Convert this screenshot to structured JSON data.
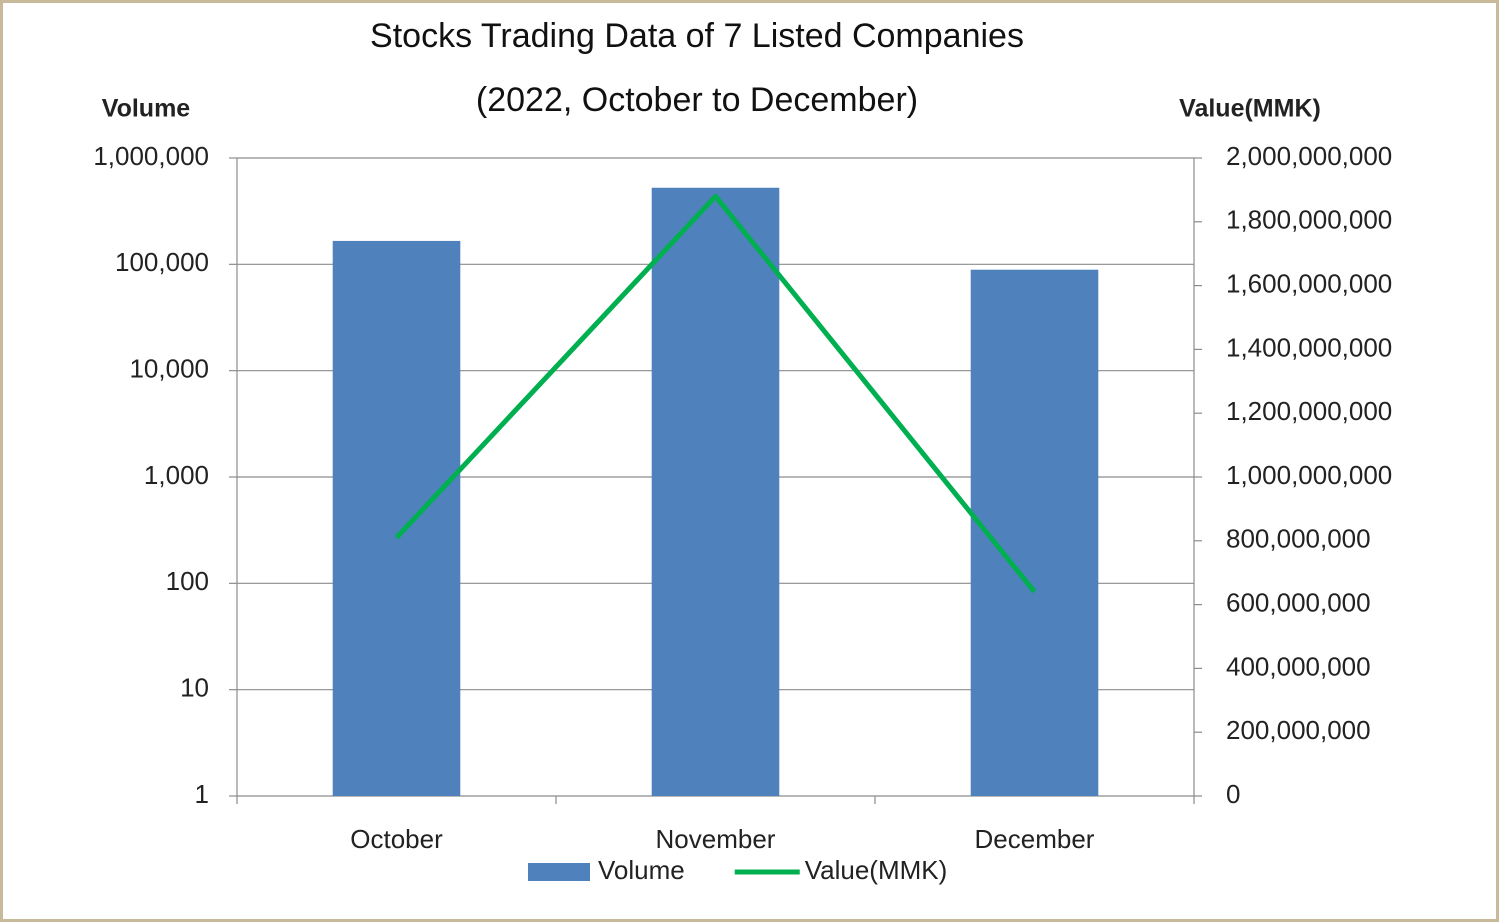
{
  "chart_data": {
    "type": "bar_line",
    "title": "Stocks Trading Data of 7 Listed Companies",
    "subtitle": "(2022, October to December)",
    "ylabel": "Volume",
    "y2label": "Value(MMK)",
    "categories": [
      "October",
      "November",
      "December"
    ],
    "series": [
      {
        "name": "Volume",
        "type": "bar",
        "axis": "y",
        "color": "#4f81bd",
        "values": [
          166000,
          525000,
          89000
        ]
      },
      {
        "name": "Value(MMK)",
        "type": "line",
        "axis": "y2",
        "color": "#00b050",
        "values": [
          810000000,
          1880000000,
          640000000
        ]
      }
    ],
    "ylog": true,
    "ylim": [
      1,
      1000000
    ],
    "yticks": [
      1,
      10,
      100,
      {
        "value": 1000,
        "label": "1,000"
      },
      {
        "value": 10000,
        "label": "10,000"
      },
      {
        "value": 100000,
        "label": "100,000"
      },
      {
        "value": 1000000,
        "label": "1,000,000"
      }
    ],
    "y2lim": [
      0,
      2000000000
    ],
    "y2ticks": [
      0,
      {
        "value": 200000000,
        "label": "200,000,000"
      },
      {
        "value": 400000000,
        "label": "400,000,000"
      },
      {
        "value": 600000000,
        "label": "600,000,000"
      },
      {
        "value": 800000000,
        "label": "800,000,000"
      },
      {
        "value": 1000000000,
        "label": "1,000,000,000"
      },
      {
        "value": 1200000000,
        "label": "1,200,000,000"
      },
      {
        "value": 1400000000,
        "label": "1,400,000,000"
      },
      {
        "value": 1600000000,
        "label": "1,600,000,000"
      },
      {
        "value": 1800000000,
        "label": "1,800,000,000"
      },
      {
        "value": 2000000000,
        "label": "2,000,000,000"
      }
    ],
    "grid": true,
    "legend": "bottom"
  }
}
